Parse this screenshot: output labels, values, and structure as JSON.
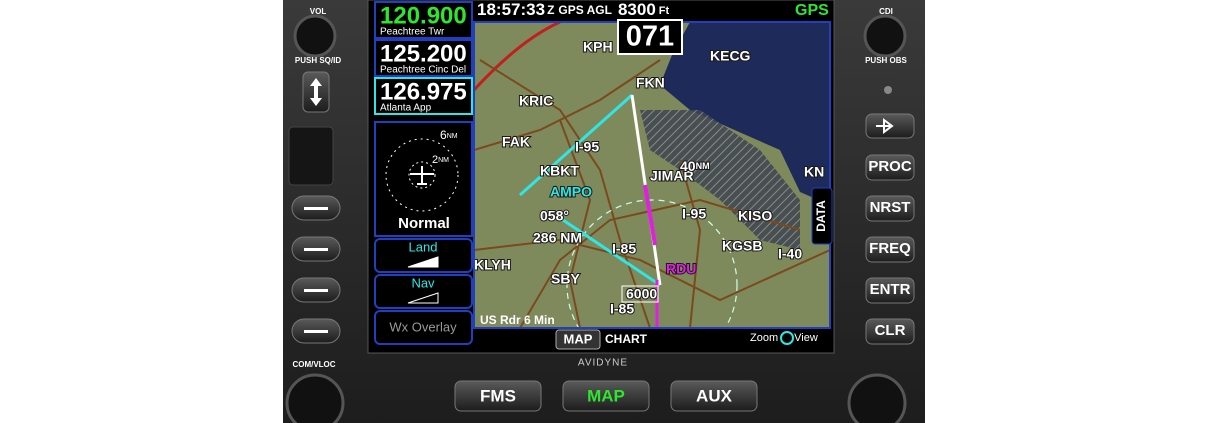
{
  "left_knob": {
    "label": "VOL",
    "push_label": "PUSH SQ/ID"
  },
  "right_knob": {
    "label": "CDI",
    "push_label": "PUSH OBS"
  },
  "com_vloc_label": "COM/VLOC",
  "frequencies": [
    {
      "value": "120.900",
      "name": "Peachtree Twr"
    },
    {
      "value": "125.200",
      "name": "Peachtree Cinc Del"
    },
    {
      "value": "126.975",
      "name": "Atlanta App"
    }
  ],
  "status_bar": {
    "time": "18:57:33",
    "zone": "Z",
    "agl_label": "GPS AGL",
    "altitude": "8300",
    "altitude_unit": "Ft",
    "mode": "GPS"
  },
  "track": "071",
  "inset": {
    "outer_ring": "6",
    "inner_ring": "2",
    "unit": "NM",
    "mode": "Normal"
  },
  "softkeys": [
    "Land",
    "Nav",
    "Wx Overlay"
  ],
  "map": {
    "labels": [
      "KPH",
      "KECG",
      "FKN",
      "KRIC",
      "FAK",
      "I-95",
      "KBKT",
      "JIMAR",
      "AMPO",
      "058°",
      "286 NM",
      "I-95",
      "KISO",
      "KGSB",
      "I-85",
      "I-40",
      "KLYH",
      "SBY",
      "RDU",
      "KN",
      "6000",
      "I-85"
    ],
    "range_ring": "40",
    "range_unit": "NM",
    "weather": "US Rdr  6 Min"
  },
  "data_tab": "DATA",
  "zoom": {
    "left": "Zoom",
    "right": "View"
  },
  "tabs": [
    "MAP",
    "CHART"
  ],
  "brand": "AVIDYNE",
  "right_buttons": [
    "PROC",
    "NRST",
    "FREQ",
    "ENTR",
    "CLR"
  ],
  "bottom_buttons": [
    "FMS",
    "MAP",
    "AUX"
  ]
}
